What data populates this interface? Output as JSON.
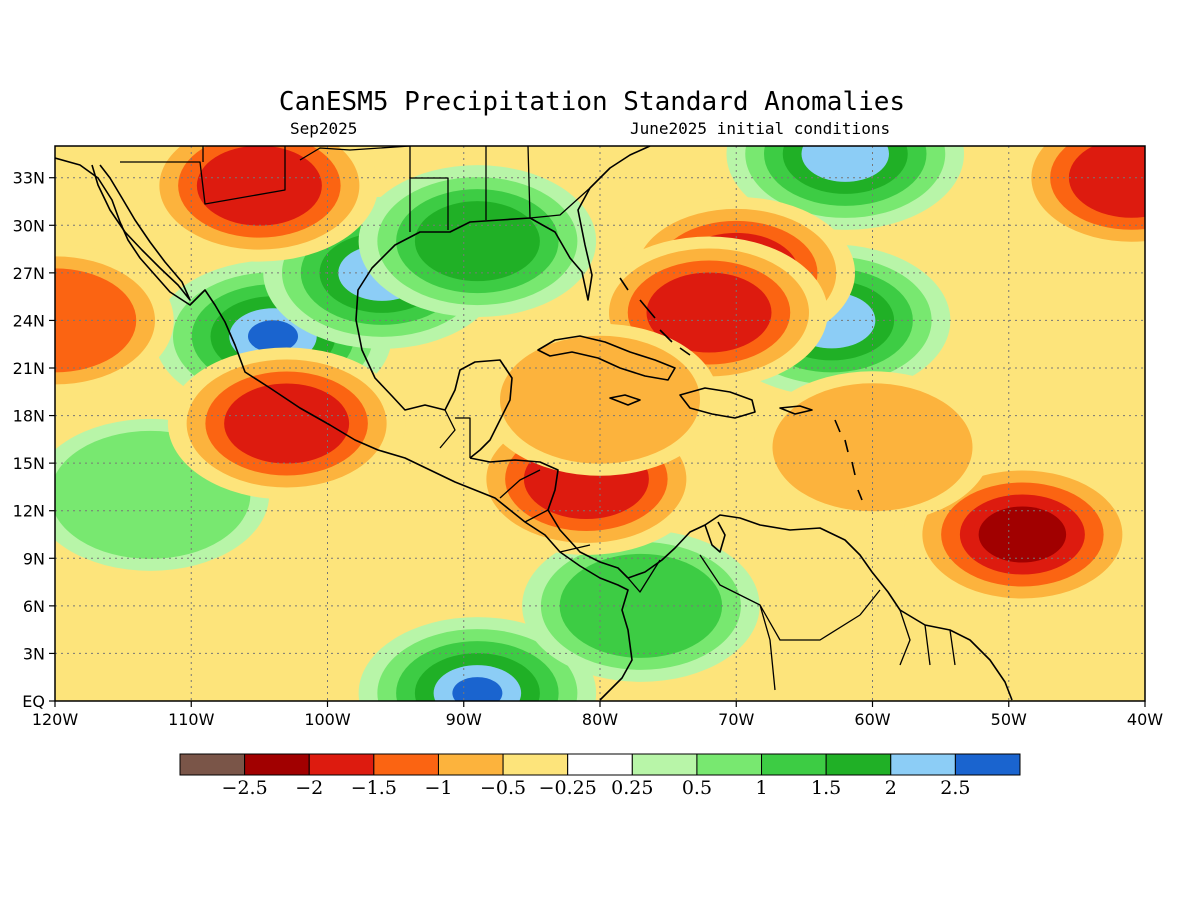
{
  "title": "CanESM5 Precipitation Standard Anomalies",
  "subtitle_left": "Sep2025",
  "subtitle_right": "June2025 initial conditions",
  "map": {
    "lon_range": [
      -120,
      -40
    ],
    "lat_range": [
      0,
      35
    ],
    "lon_tick_labels": [
      "120W",
      "110W",
      "100W",
      "90W",
      "80W",
      "70W",
      "60W",
      "50W",
      "40W"
    ],
    "lat_tick_labels": [
      "EQ",
      "3N",
      "6N",
      "9N",
      "12N",
      "15N",
      "18N",
      "21N",
      "24N",
      "27N",
      "30N",
      "33N"
    ],
    "gridlines": "dotted"
  },
  "colorbar": {
    "colors": [
      "#7a5548",
      "#a10000",
      "#dd1b0f",
      "#fb6412",
      "#fcb33d",
      "#fde47b",
      "#ffffff",
      "#b8f5a8",
      "#78e870",
      "#3dcc44",
      "#20b026",
      "#8ccdf6",
      "#1a64cf"
    ],
    "labels": [
      "−2.5",
      "−2",
      "−1.5",
      "−1",
      "−0.5",
      "−0.25",
      "0.25",
      "0.5",
      "1",
      "1.5",
      "2",
      "2.5"
    ]
  },
  "chart_data": {
    "type": "heatmap",
    "title": "CanESM5 Precipitation Standard Anomalies",
    "variable": "Precipitation standard anomaly",
    "period": "Sep2025",
    "initial_conditions": "June2025 initial conditions",
    "levels": [
      -2.5,
      -2,
      -1.5,
      -1,
      -0.5,
      -0.25,
      0.25,
      0.5,
      1,
      1.5,
      2,
      2.5
    ],
    "xlim": [
      -120,
      -40
    ],
    "ylim": [
      0,
      35
    ],
    "features": [
      {
        "lon": -104,
        "lat": 23,
        "value": 2.5
      },
      {
        "lon": -96,
        "lat": 27,
        "value": 2.0
      },
      {
        "lon": -89,
        "lat": 29,
        "value": 1.5
      },
      {
        "lon": -89,
        "lat": 0.5,
        "value": 2.5
      },
      {
        "lon": -63,
        "lat": 24,
        "value": 2.0
      },
      {
        "lon": -62,
        "lat": 34.5,
        "value": 2.0
      },
      {
        "lon": -77,
        "lat": 6,
        "value": 1.0
      },
      {
        "lon": -113,
        "lat": 13,
        "value": 0.5
      },
      {
        "lon": -49,
        "lat": 10.5,
        "value": -2.0
      },
      {
        "lon": -41,
        "lat": 33,
        "value": -1.5
      },
      {
        "lon": -70,
        "lat": 27,
        "value": -1.5
      },
      {
        "lon": -72,
        "lat": 24.5,
        "value": -1.5
      },
      {
        "lon": -103,
        "lat": 17.5,
        "value": -1.5
      },
      {
        "lon": -81,
        "lat": 14,
        "value": -1.5
      },
      {
        "lon": -105,
        "lat": 32.5,
        "value": -1.5
      },
      {
        "lon": -120,
        "lat": 24,
        "value": -1.0
      },
      {
        "lon": -80,
        "lat": 19,
        "value": -0.5
      },
      {
        "lon": -60,
        "lat": 16,
        "value": -0.5
      }
    ]
  }
}
